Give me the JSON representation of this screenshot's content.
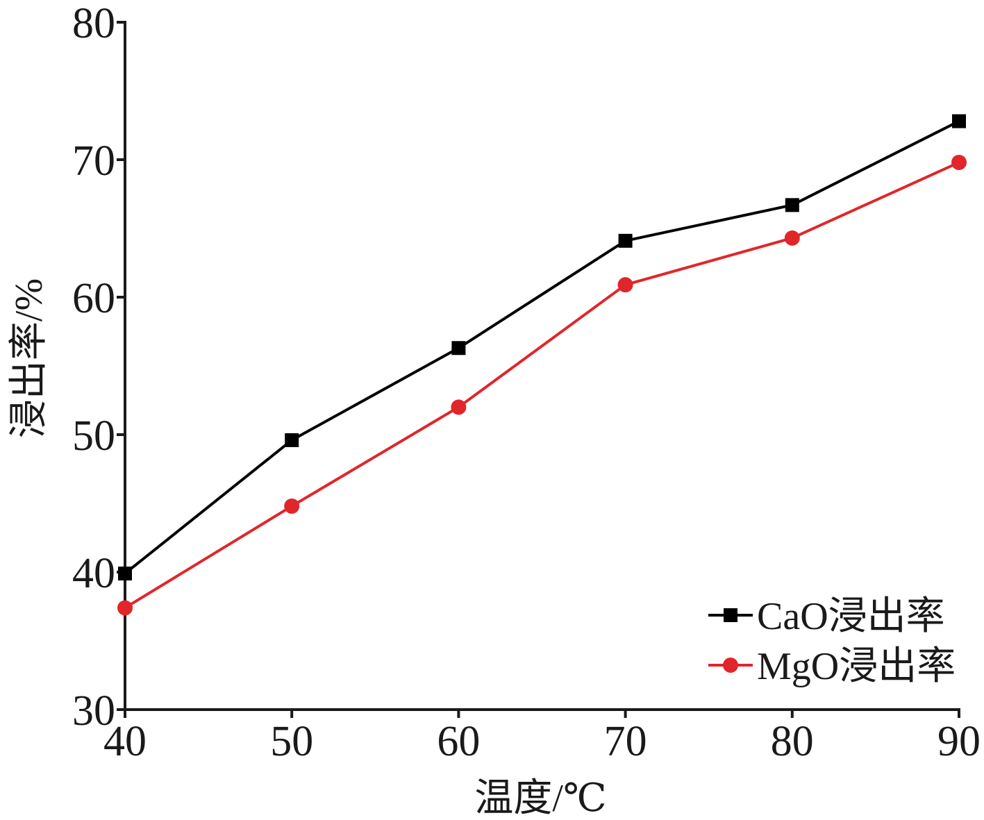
{
  "chart_data": {
    "type": "line",
    "x": [
      40,
      50,
      60,
      70,
      80,
      90
    ],
    "series": [
      {
        "name": "CaO浸出率",
        "values": [
          39.9,
          49.6,
          56.3,
          64.1,
          66.7,
          72.8
        ],
        "color": "#000000",
        "marker": "square"
      },
      {
        "name": "MgO浸出率",
        "values": [
          37.4,
          44.8,
          52.0,
          60.9,
          64.3,
          69.8
        ],
        "color": "#e0262b",
        "marker": "circle"
      }
    ],
    "xlabel": "温度/℃",
    "ylabel": "浸出率/%",
    "xlim": [
      40,
      90
    ],
    "ylim": [
      30,
      80
    ],
    "xticks": [
      40,
      50,
      60,
      70,
      80,
      90
    ],
    "yticks": [
      30,
      40,
      50,
      60,
      70,
      80
    ],
    "grid": false,
    "legend_position": "bottom-right"
  }
}
